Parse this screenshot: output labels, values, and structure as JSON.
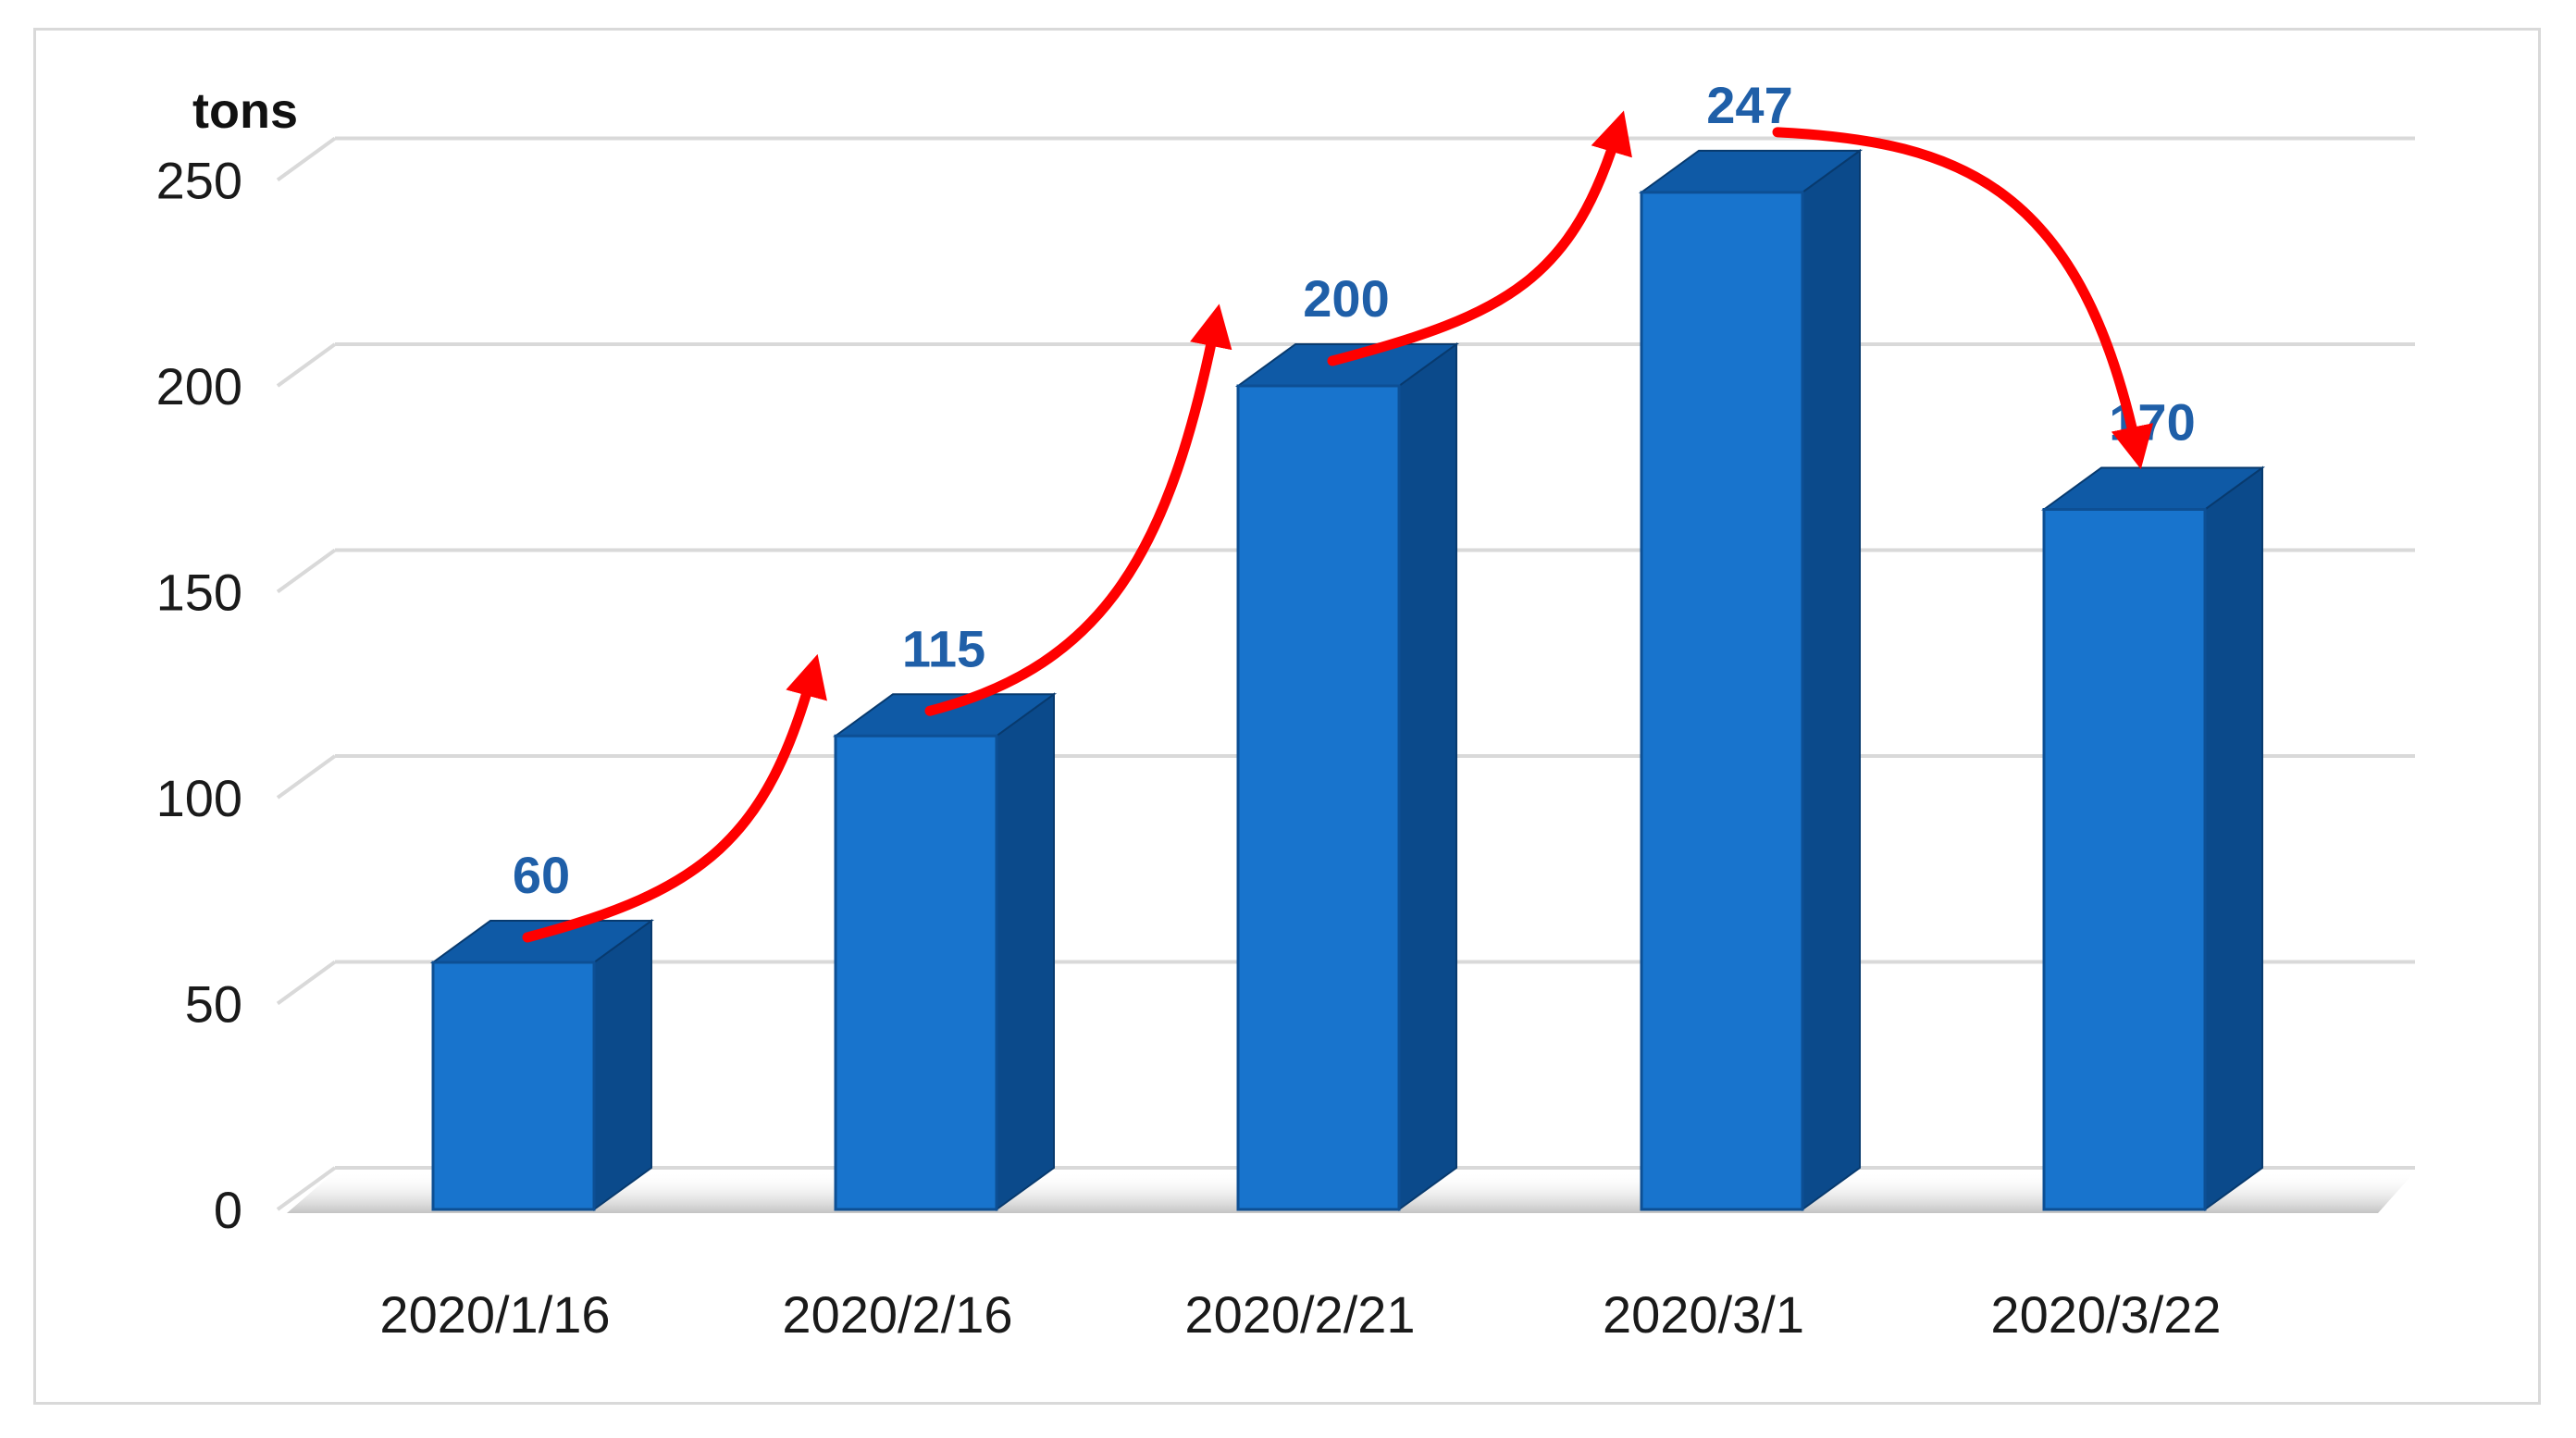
{
  "chart_data": {
    "type": "bar",
    "style": "3d-column",
    "categories": [
      "2020/1/16",
      "2020/2/16",
      "2020/2/21",
      "2020/3/1",
      "2020/3/22"
    ],
    "values": [
      60,
      115,
      200,
      247,
      170
    ],
    "ylabel": "tons",
    "ylim": [
      0,
      250
    ],
    "yticks": [
      0,
      50,
      100,
      150,
      200,
      250
    ],
    "grid": true,
    "data_labels": [
      "60",
      "115",
      "200",
      "247",
      "170"
    ],
    "annotations": [
      {
        "type": "curved-arrow",
        "from": "2020/1/16",
        "to": "2020/2/16",
        "direction": "up"
      },
      {
        "type": "curved-arrow",
        "from": "2020/2/16",
        "to": "2020/2/21",
        "direction": "up"
      },
      {
        "type": "curved-arrow",
        "from": "2020/2/21",
        "to": "2020/3/1",
        "direction": "up"
      },
      {
        "type": "curved-arrow",
        "from": "2020/3/1",
        "to": "2020/3/22",
        "direction": "down"
      }
    ]
  },
  "colors": {
    "bar_front": "#1874CD",
    "bar_side": "#0B4A8B",
    "bar_top": "#0F5AA6",
    "data_label": "#1F5FA8",
    "arrow": "#FF0000",
    "grid": "#d9d9d9"
  }
}
